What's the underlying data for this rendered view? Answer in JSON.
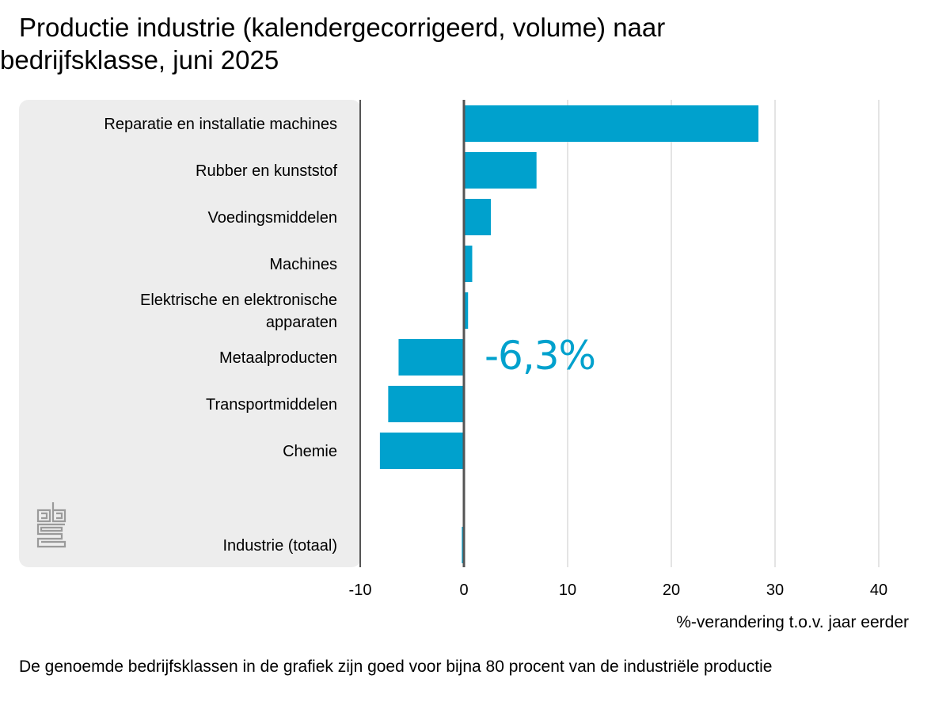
{
  "title": "Productie industrie (kalendergecorrigeerd, volume) naar bedrijfsklasse, juni 2025",
  "annotation": "-6,3%",
  "footnote": "De genoemde bedrijfsklassen in de grafiek zijn goed voor bijna 80 procent van de industriële productie",
  "colors": {
    "bar": "#00a1cd",
    "panel": "#ededed",
    "grid": "#c8c8c8",
    "axis": "#555555"
  },
  "logo": "cbs-logo",
  "chart_data": {
    "type": "bar",
    "orientation": "horizontal",
    "categories": [
      "Reparatie en installatie machines",
      "Rubber en kunststof",
      "Voedingsmiddelen",
      "Machines",
      "Elektrische en elektronische apparaten",
      "Metaalproducten",
      "Transportmiddelen",
      "Chemie",
      "Industrie (totaal)"
    ],
    "values": [
      28.4,
      7.0,
      2.6,
      0.8,
      0.4,
      -6.3,
      -7.3,
      -8.1,
      -0.2
    ],
    "xlabel": "%-verandering t.o.v. jaar eerder",
    "ylabel": "",
    "xlim": [
      -10,
      40
    ],
    "xticks": [
      "-10",
      "0",
      "10",
      "20",
      "30",
      "40"
    ],
    "grid": true
  }
}
